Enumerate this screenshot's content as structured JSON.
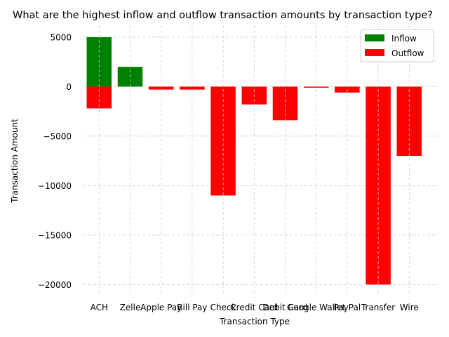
{
  "chart_data": {
    "type": "bar",
    "title": "What are the highest inflow and outflow transaction amounts by transaction type?",
    "xlabel": "Transaction Type",
    "ylabel": "Transaction Amount",
    "categories": [
      "ACH",
      "Zelle",
      "Apple Pay",
      "Bill Pay",
      "Check",
      "Credit Card",
      "Debit Card",
      "Google Wallet",
      "PayPal",
      "Transfer",
      "Wire"
    ],
    "series": [
      {
        "name": "Inflow",
        "color": "#008000",
        "values": [
          5000,
          2000,
          0,
          0,
          0,
          0,
          0,
          0,
          0,
          0,
          0
        ]
      },
      {
        "name": "Outflow",
        "color": "#ff0000",
        "values": [
          -2200,
          0,
          -300,
          -300,
          -11000,
          -1800,
          -3400,
          -100,
          -600,
          -20000,
          -7000
        ]
      }
    ],
    "yticks": [
      5000,
      0,
      -5000,
      -10000,
      -15000,
      -20000
    ],
    "ytick_labels": [
      "5000",
      "0",
      "−5000",
      "−10000",
      "−15000",
      "−20000"
    ],
    "ylim": [
      -20900,
      6200
    ],
    "grid": true,
    "legend_position": "top-right"
  }
}
